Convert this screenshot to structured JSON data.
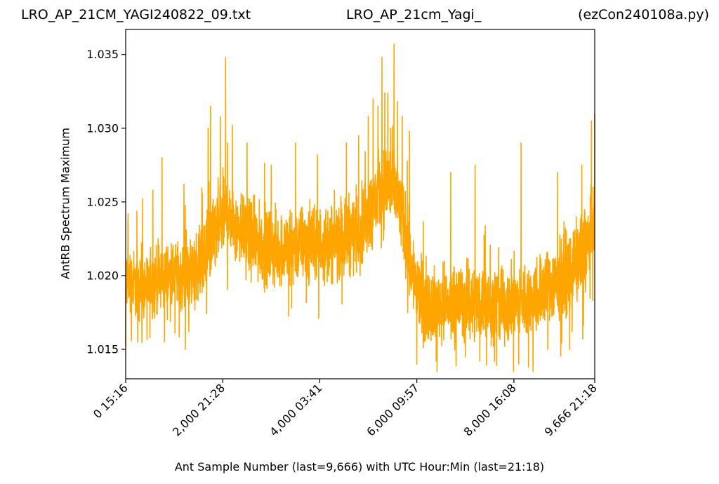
{
  "titles": {
    "left": "LRO_AP_21CM_YAGI240822_09.txt",
    "center": "LRO_AP_21cm_Yagi_",
    "right": "(ezCon240108a.py)"
  },
  "chart_data": {
    "type": "line",
    "xlabel": "Ant Sample Number (last=9,666) with UTC Hour:Min (last=21:18)",
    "ylabel": "AntRB Spectrum Maximum",
    "xlim": [
      0,
      9666
    ],
    "ylim": [
      1.013,
      1.0367
    ],
    "x_ticks": [
      {
        "value": 0,
        "label": "0  15:16"
      },
      {
        "value": 2000,
        "label": "2,000  21:28"
      },
      {
        "value": 4000,
        "label": "4,000  03:41"
      },
      {
        "value": 6000,
        "label": "6,000  09:57"
      },
      {
        "value": 8000,
        "label": "8,000  16:08"
      },
      {
        "value": 9666,
        "label": "9,666  21:18"
      }
    ],
    "y_ticks": [
      {
        "value": 1.015,
        "label": "1.015"
      },
      {
        "value": 1.02,
        "label": "1.020"
      },
      {
        "value": 1.025,
        "label": "1.025"
      },
      {
        "value": 1.03,
        "label": "1.030"
      },
      {
        "value": 1.035,
        "label": "1.035"
      }
    ],
    "grid": false,
    "series": [
      {
        "color": "#ffa500",
        "x": [
          0,
          200,
          400,
          600,
          800,
          1000,
          1200,
          1400,
          1600,
          1800,
          1900,
          2000,
          2100,
          2200,
          2400,
          2600,
          2800,
          3000,
          3200,
          3400,
          3600,
          3800,
          4000,
          4200,
          4400,
          4600,
          4800,
          5000,
          5200,
          5400,
          5500,
          5600,
          5700,
          5800,
          5900,
          6000,
          6200,
          6400,
          6600,
          6800,
          7000,
          7200,
          7400,
          7600,
          7800,
          8000,
          8200,
          8400,
          8600,
          8800,
          9000,
          9200,
          9400,
          9666
        ],
        "mid": [
          1.0195,
          1.0195,
          1.0192,
          1.0196,
          1.0199,
          1.02,
          1.02,
          1.0205,
          1.0212,
          1.0225,
          1.0232,
          1.024,
          1.0242,
          1.0238,
          1.0232,
          1.0225,
          1.022,
          1.0218,
          1.0218,
          1.022,
          1.0222,
          1.0222,
          1.0222,
          1.0222,
          1.0225,
          1.0228,
          1.0232,
          1.024,
          1.0255,
          1.0262,
          1.026,
          1.0252,
          1.024,
          1.0222,
          1.0205,
          1.019,
          1.0182,
          1.018,
          1.018,
          1.0182,
          1.0182,
          1.0183,
          1.0182,
          1.018,
          1.018,
          1.0182,
          1.0182,
          1.0185,
          1.019,
          1.0195,
          1.02,
          1.0205,
          1.0215,
          1.023
        ],
        "half_band": [
          0.0025,
          0.0026,
          0.0026,
          0.0027,
          0.0027,
          0.0027,
          0.0028,
          0.0029,
          0.003,
          0.0031,
          0.0032,
          0.0033,
          0.0033,
          0.0032,
          0.0031,
          0.003,
          0.003,
          0.003,
          0.003,
          0.003,
          0.003,
          0.003,
          0.003,
          0.003,
          0.003,
          0.0031,
          0.0031,
          0.0032,
          0.0033,
          0.0035,
          0.0035,
          0.0034,
          0.0033,
          0.0032,
          0.0031,
          0.003,
          0.003,
          0.003,
          0.003,
          0.003,
          0.003,
          0.003,
          0.003,
          0.003,
          0.003,
          0.003,
          0.003,
          0.003,
          0.0031,
          0.0031,
          0.0032,
          0.0032,
          0.0033,
          0.0034
        ],
        "peak_points": [
          [
            50,
            1.0242
          ],
          [
            350,
            1.0252
          ],
          [
            560,
            1.0258
          ],
          [
            750,
            1.028
          ],
          [
            1200,
            1.0262
          ],
          [
            1700,
            1.03
          ],
          [
            1750,
            1.0315
          ],
          [
            1950,
            1.0308
          ],
          [
            2060,
            1.0348
          ],
          [
            2200,
            1.0302
          ],
          [
            2500,
            1.029
          ],
          [
            3000,
            1.0275
          ],
          [
            3500,
            1.029
          ],
          [
            3950,
            1.0282
          ],
          [
            4550,
            1.029
          ],
          [
            4800,
            1.0295
          ],
          [
            5000,
            1.0308
          ],
          [
            5100,
            1.032
          ],
          [
            5200,
            1.0315
          ],
          [
            5280,
            1.0348
          ],
          [
            5340,
            1.0324
          ],
          [
            5400,
            1.0324
          ],
          [
            5460,
            1.03
          ],
          [
            5530,
            1.0357
          ],
          [
            5600,
            1.0318
          ],
          [
            5700,
            1.0308
          ],
          [
            5850,
            1.0298
          ],
          [
            6000,
            1.0278
          ],
          [
            6700,
            1.027
          ],
          [
            7200,
            1.0275
          ],
          [
            7600,
            1.0265
          ],
          [
            8150,
            1.029
          ],
          [
            8900,
            1.027
          ],
          [
            9400,
            1.0275
          ],
          [
            9600,
            1.0305
          ],
          [
            9666,
            1.031
          ]
        ],
        "trough_points": [
          [
            0,
            1.0152
          ],
          [
            250,
            1.0155
          ],
          [
            500,
            1.0158
          ],
          [
            800,
            1.0155
          ],
          [
            1300,
            1.0162
          ],
          [
            6000,
            1.014
          ],
          [
            6400,
            1.0142
          ],
          [
            7000,
            1.0145
          ],
          [
            7300,
            1.0142
          ],
          [
            7600,
            1.0142
          ],
          [
            8100,
            1.014
          ],
          [
            8300,
            1.0138
          ],
          [
            8700,
            1.015
          ],
          [
            9200,
            1.0162
          ]
        ]
      }
    ]
  }
}
